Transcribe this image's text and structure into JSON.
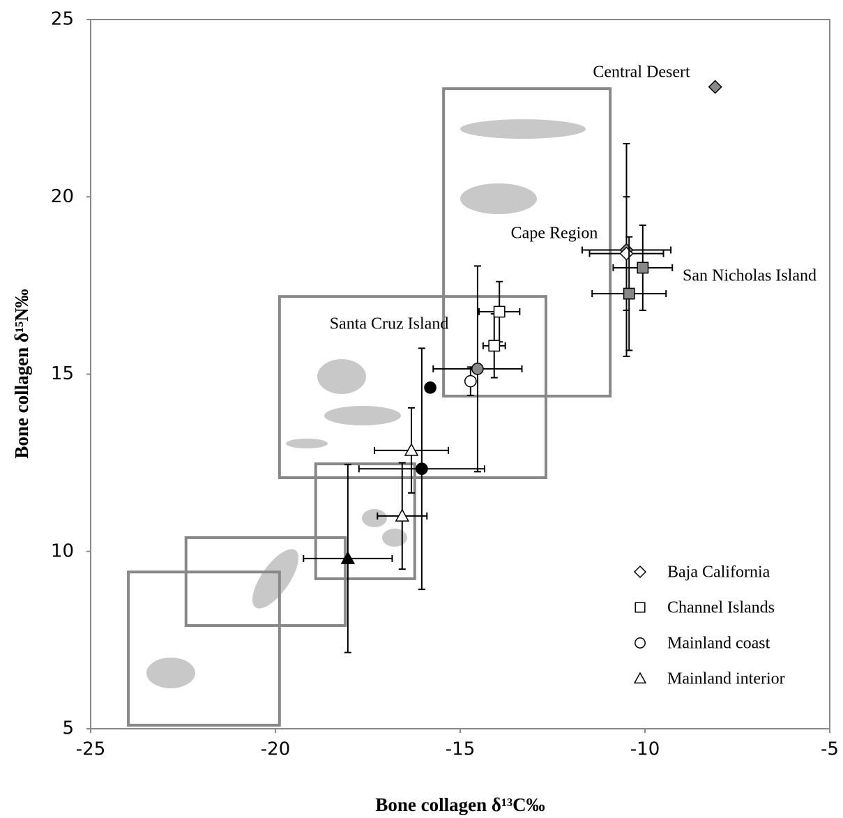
{
  "chart_data": {
    "type": "scatter",
    "x_label": "Bone collagen δ¹³C‰",
    "y_label": "Bone collagen δ¹⁵N‰",
    "xlim": [
      -25,
      -5
    ],
    "xticks": [
      -25,
      -20,
      -15,
      -10,
      -5
    ],
    "ylim": [
      5,
      25
    ],
    "yticks": [
      5,
      10,
      15,
      20,
      25
    ],
    "grid": false,
    "legend": "lower right",
    "annotations": [
      "Central Desert",
      "Cape Region",
      "San Nicholas Island",
      "Santa Cruz Island"
    ],
    "regions": [
      {
        "xlim": [
          -15.45,
          -10.94
        ],
        "ylim": [
          14.38,
          23.05
        ]
      },
      {
        "xlim": [
          -19.89,
          -12.68
        ],
        "ylim": [
          12.08,
          17.19
        ]
      },
      {
        "xlim": [
          -18.91,
          -16.23
        ],
        "ylim": [
          9.23,
          12.47
        ]
      },
      {
        "xlim": [
          -22.42,
          -18.11
        ],
        "ylim": [
          7.91,
          10.39
        ]
      },
      {
        "xlim": [
          -23.98,
          -19.89
        ],
        "ylim": [
          5.1,
          9.42
        ]
      }
    ],
    "series": [
      {
        "name": "Baja California",
        "marker": "diamond",
        "x": [
          -8.1,
          -10.5,
          -10.5
        ],
        "values": [
          23.1,
          18.5,
          18.4
        ],
        "xerr": [
          null,
          1.2,
          1.0
        ],
        "yerr": [
          null,
          3.0,
          1.6
        ],
        "colors": [
          "#888888",
          "#888888",
          "#ffffff"
        ]
      },
      {
        "name": "Channel Islands",
        "marker": "square",
        "x": [
          -10.06,
          -10.43,
          -13.94,
          -14.08
        ],
        "values": [
          18.0,
          17.27,
          16.76,
          15.8
        ],
        "xerr": [
          0.8,
          1.0,
          0.55,
          0.3
        ],
        "yerr": [
          1.2,
          1.6,
          0.85,
          0.9
        ],
        "colors": [
          "#888888",
          "#888888",
          "#ffffff",
          "#ffffff"
        ]
      },
      {
        "name": "Mainland coast",
        "marker": "circle",
        "x": [
          -14.53,
          -14.72,
          -15.81,
          -16.04
        ],
        "values": [
          15.15,
          14.8,
          14.62,
          12.33
        ],
        "xerr": [
          1.2,
          null,
          null,
          1.7
        ],
        "yerr": [
          2.9,
          0.4,
          null,
          3.4
        ],
        "colors": [
          "#888888",
          "#ffffff",
          "#000000",
          "#000000"
        ]
      },
      {
        "name": "Mainland interior",
        "marker": "triangle",
        "x": [
          -16.32,
          -16.57,
          -18.04
        ],
        "values": [
          12.85,
          11.0,
          9.8
        ],
        "xerr": [
          1.0,
          0.67,
          1.2
        ],
        "yerr": [
          1.2,
          1.5,
          2.65
        ],
        "colors": [
          "#ffffff",
          "#ffffff",
          "#000000"
        ]
      }
    ]
  }
}
